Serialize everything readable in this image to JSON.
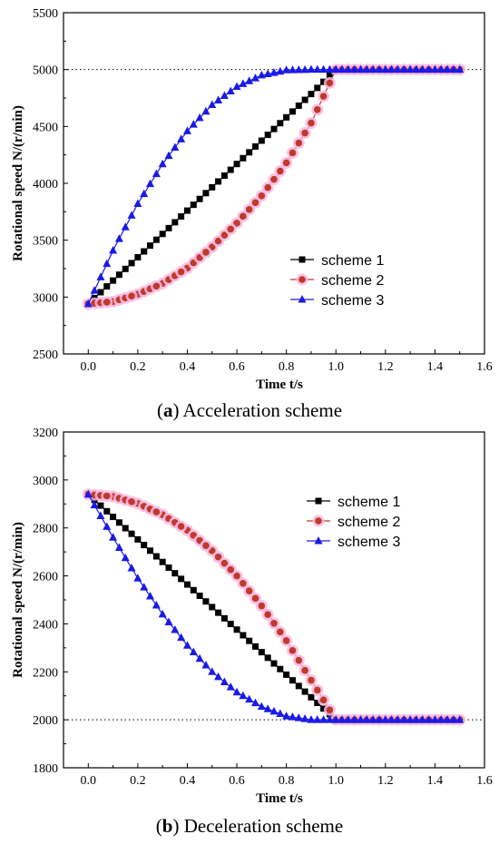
{
  "captions": [
    {
      "prefix": "(",
      "letter": "a",
      "suffix": ") ",
      "text": "Acceleration scheme"
    },
    {
      "prefix": "(",
      "letter": "b",
      "suffix": ") ",
      "text": "Deceleration scheme"
    }
  ],
  "chart_data": [
    {
      "type": "line",
      "xlabel": "Time t/s",
      "ylabel": "Rotational speed N/(r/min)",
      "xlim": [
        -0.1,
        1.6
      ],
      "ylim": [
        2500,
        5500
      ],
      "xticks": [
        "0.0",
        "0.2",
        "0.4",
        "0.6",
        "0.8",
        "1.0",
        "1.2",
        "1.4",
        "1.6"
      ],
      "yticks": [
        "2500",
        "3000",
        "3500",
        "4000",
        "4500",
        "5000",
        "5500"
      ],
      "reference_line": {
        "y": 5000,
        "style": "dotted"
      },
      "legend_position": "center-right",
      "x": [
        0.0,
        0.1,
        0.2,
        0.3,
        0.4,
        0.5,
        0.6,
        0.7,
        0.8,
        0.9,
        1.0,
        1.1,
        1.2,
        1.3,
        1.4,
        1.5
      ],
      "series": [
        {
          "name": "scheme 1",
          "marker": "square",
          "color": "#000000",
          "values": [
            2940,
            3145,
            3350,
            3555,
            3760,
            3965,
            4170,
            4375,
            4580,
            4785,
            5000,
            5000,
            5000,
            5000,
            5000,
            5000
          ]
        },
        {
          "name": "scheme 2",
          "marker": "circle",
          "color": "#c0392b",
          "values": [
            2940,
            2960,
            3025,
            3120,
            3255,
            3440,
            3650,
            3890,
            4180,
            4530,
            5000,
            5000,
            5000,
            5000,
            5000,
            5000
          ]
        },
        {
          "name": "scheme 3",
          "marker": "triangle",
          "color": "#1a1ae6",
          "values": [
            2940,
            3410,
            3820,
            4170,
            4460,
            4690,
            4850,
            4950,
            4995,
            5000,
            5000,
            5000,
            5000,
            5000,
            5000,
            5000
          ]
        }
      ]
    },
    {
      "type": "line",
      "xlabel": "Time t/s",
      "ylabel": "Rotational speed N/(r/min)",
      "xlim": [
        -0.1,
        1.6
      ],
      "ylim": [
        1800,
        3200
      ],
      "xticks": [
        "0.0",
        "0.2",
        "0.4",
        "0.6",
        "0.8",
        "1.0",
        "1.2",
        "1.4",
        "1.6"
      ],
      "yticks": [
        "1800",
        "2000",
        "2200",
        "2400",
        "2600",
        "2800",
        "3000",
        "3200"
      ],
      "reference_line": {
        "y": 2000,
        "style": "dotted"
      },
      "legend_position": "top-right",
      "x": [
        0.0,
        0.1,
        0.2,
        0.3,
        0.4,
        0.5,
        0.6,
        0.7,
        0.8,
        0.9,
        1.0,
        1.1,
        1.2,
        1.3,
        1.4,
        1.5
      ],
      "series": [
        {
          "name": "scheme 1",
          "marker": "square",
          "color": "#000000",
          "values": [
            2940,
            2846,
            2752,
            2658,
            2564,
            2470,
            2376,
            2282,
            2188,
            2094,
            2000,
            2000,
            2000,
            2000,
            2000,
            2000
          ]
        },
        {
          "name": "scheme 2",
          "marker": "circle",
          "color": "#c0392b",
          "values": [
            2940,
            2931,
            2902,
            2855,
            2790,
            2705,
            2600,
            2475,
            2330,
            2165,
            2000,
            2000,
            2000,
            2000,
            2000,
            2000
          ]
        },
        {
          "name": "scheme 3",
          "marker": "triangle",
          "color": "#1a1ae6",
          "values": [
            2940,
            2760,
            2590,
            2440,
            2310,
            2200,
            2115,
            2055,
            2015,
            2000,
            2000,
            2000,
            2000,
            2000,
            2000,
            2000
          ]
        }
      ]
    }
  ]
}
